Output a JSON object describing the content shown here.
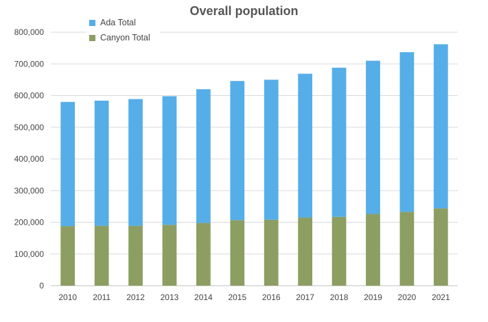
{
  "chart_data": {
    "type": "bar",
    "stacked": true,
    "title": "Overall population",
    "xlabel": "",
    "ylabel": "",
    "categories": [
      "2010",
      "2011",
      "2012",
      "2013",
      "2014",
      "2015",
      "2016",
      "2017",
      "2018",
      "2019",
      "2020",
      "2021"
    ],
    "series": [
      {
        "name": "Canyon Total",
        "color": "#8c9e62",
        "values": [
          188000,
          189000,
          189000,
          192000,
          198000,
          207000,
          208000,
          215000,
          217000,
          226000,
          233000,
          244000
        ]
      },
      {
        "name": "Ada Total",
        "color": "#56aee8",
        "values": [
          392000,
          395000,
          400000,
          406000,
          422000,
          439000,
          442000,
          454000,
          471000,
          484000,
          504000,
          518000
        ]
      }
    ],
    "ylim": [
      0,
      800000
    ],
    "yticks": [
      "0",
      "100,000",
      "200,000",
      "300,000",
      "400,000",
      "500,000",
      "600,000",
      "700,000",
      "800,000"
    ],
    "grid": true,
    "legend_position": "top-left",
    "legend_order": [
      "Ada Total",
      "Canyon Total"
    ]
  }
}
